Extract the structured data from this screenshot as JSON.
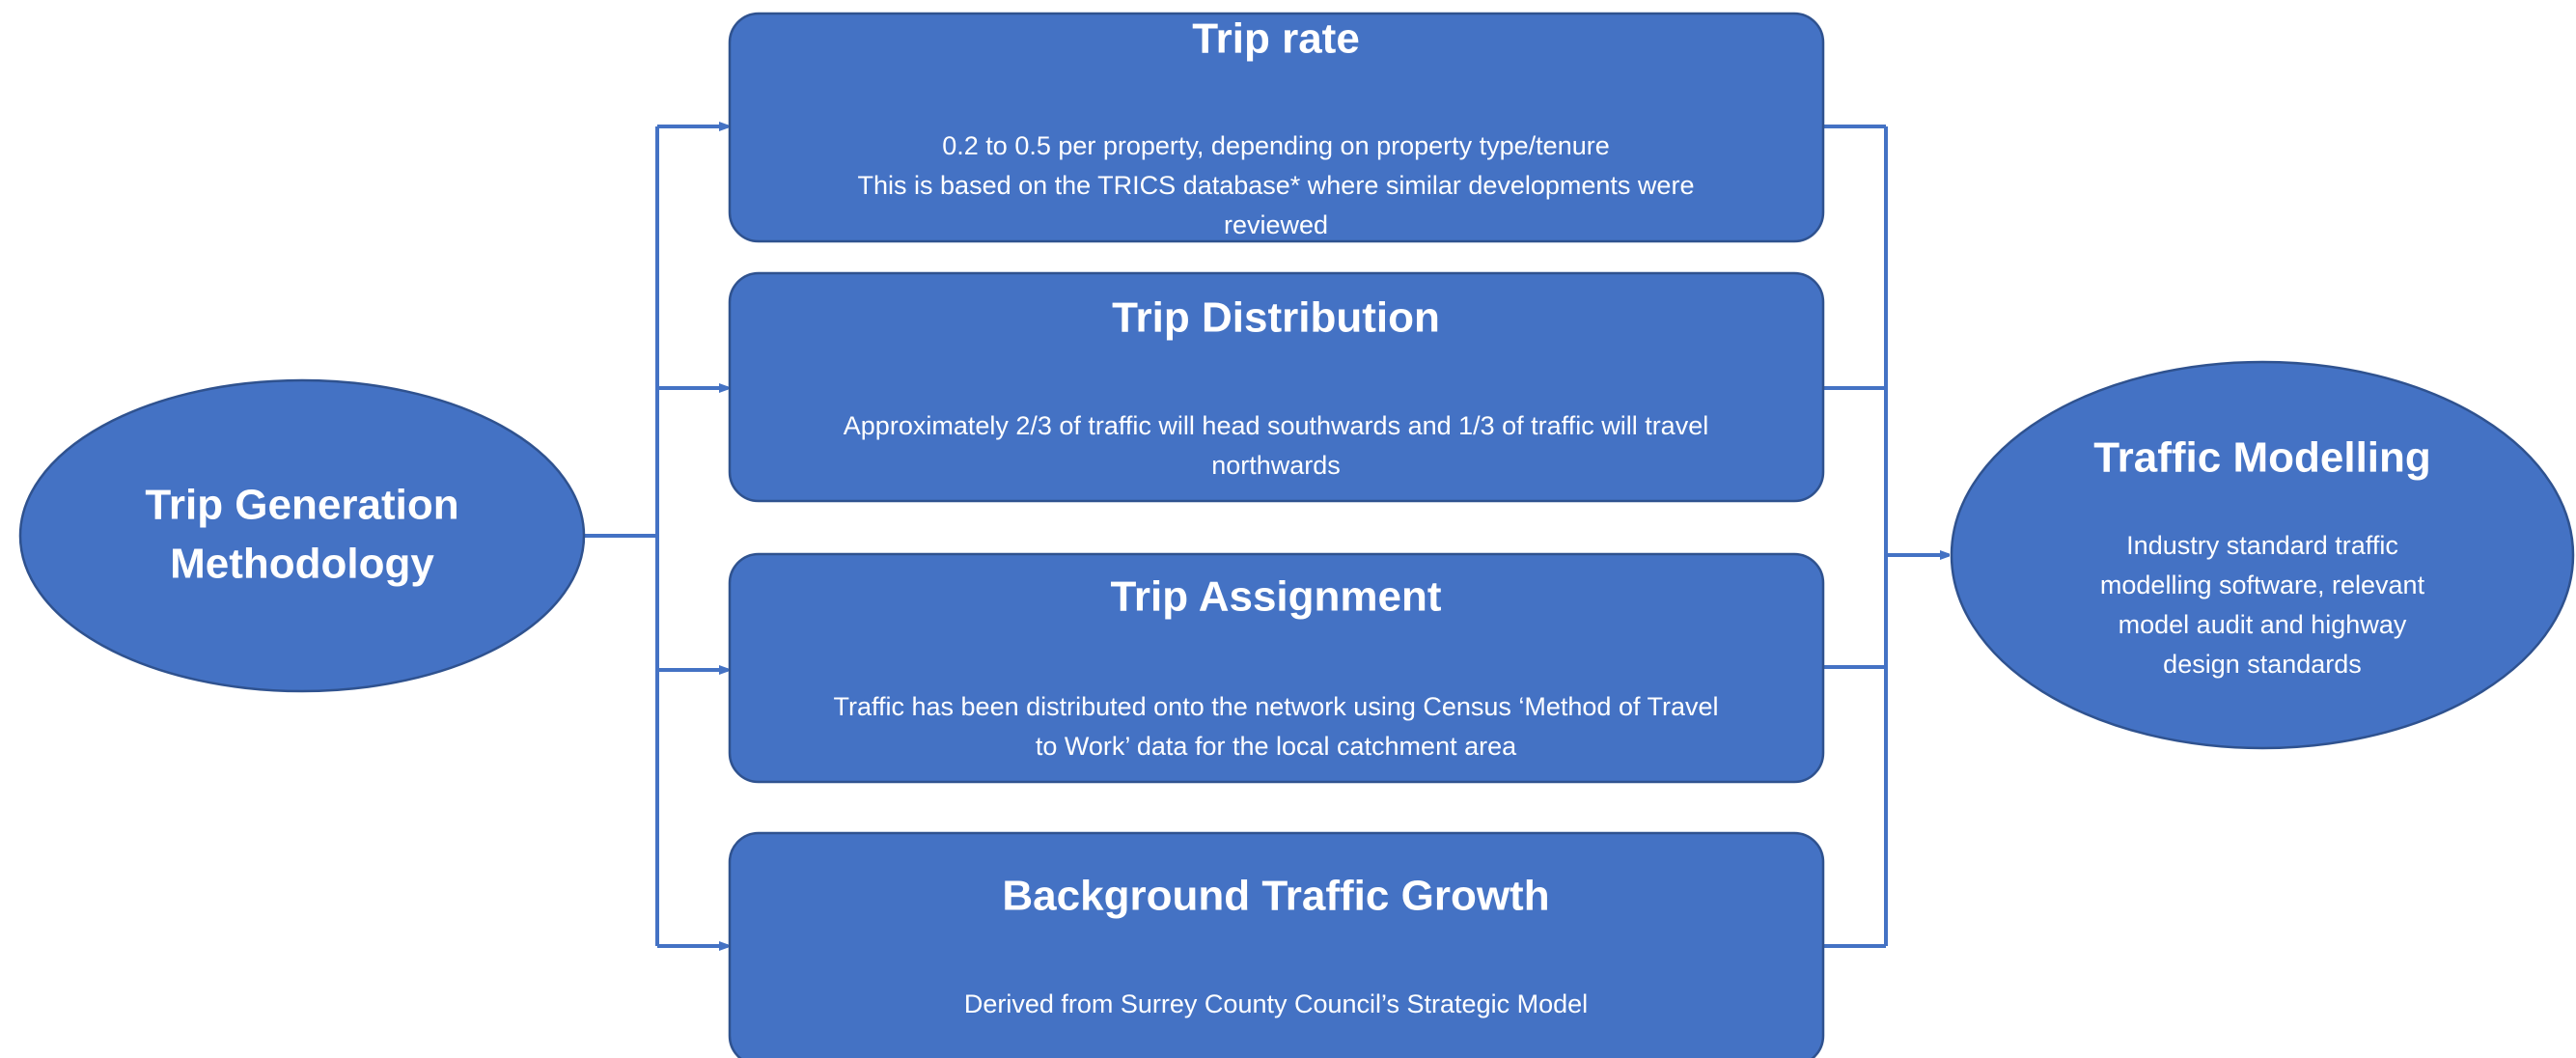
{
  "source": {
    "label": [
      "Trip Generation",
      "Methodology"
    ]
  },
  "steps": [
    {
      "title": "Trip rate",
      "body": [
        "0.2 to 0.5 per property, depending on property type/tenure",
        "This is based on the TRICS database* where similar developments were",
        "reviewed"
      ]
    },
    {
      "title": "Trip Distribution",
      "body": [
        "Approximately 2/3 of traffic will head southwards and 1/3 of traffic will travel",
        "northwards"
      ]
    },
    {
      "title": "Trip Assignment",
      "body": [
        "Traffic has been distributed onto the network using Census ‘Method of Travel",
        "to Work’ data for the local catchment area"
      ]
    },
    {
      "title": "Background Traffic Growth",
      "body": [
        "Derived from Surrey County Council’s Strategic Model"
      ]
    }
  ],
  "target": {
    "title": "Traffic Modelling",
    "body": [
      "Industry standard traffic",
      "modelling software, relevant",
      "model audit and highway",
      "design standards"
    ]
  }
}
